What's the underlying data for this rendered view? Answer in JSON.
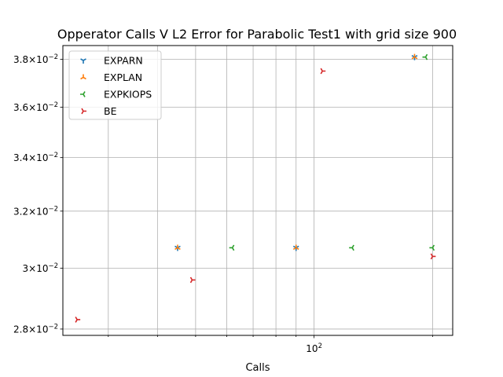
{
  "chart_data": {
    "type": "scatter",
    "title": "Opperator Calls V L2 Error for Parabolic Test1 with grid size 900",
    "xlabel": "Calls",
    "ylabel": "",
    "xscale": "log",
    "yscale": "log",
    "xlim": [
      23,
      225
    ],
    "ylim": [
      0.0278,
      0.0386
    ],
    "grid": true,
    "legend_position": "upper-left",
    "x_tick_labels": [
      {
        "value": 100,
        "base": "10",
        "exp": "2"
      }
    ],
    "y_tick_labels": [
      {
        "value": 0.028,
        "mantissa": "2.8",
        "times": "×10",
        "exp": "−2"
      },
      {
        "value": 0.03,
        "mantissa": "3",
        "times": "×10",
        "exp": "−2"
      },
      {
        "value": 0.032,
        "mantissa": "3.2",
        "times": "×10",
        "exp": "−2"
      },
      {
        "value": 0.034,
        "mantissa": "3.4",
        "times": "×10",
        "exp": "−2"
      },
      {
        "value": 0.036,
        "mantissa": "3.6",
        "times": "×10",
        "exp": "−2"
      },
      {
        "value": 0.038,
        "mantissa": "3.8",
        "times": "×10",
        "exp": "−2"
      }
    ],
    "series": [
      {
        "name": "EXPARN",
        "color": "#1f77b4",
        "marker": "tri_down",
        "points": [
          {
            "x": 45,
            "y": 0.0307
          },
          {
            "x": 90,
            "y": 0.0307
          },
          {
            "x": 180,
            "y": 0.0381
          }
        ]
      },
      {
        "name": "EXPLAN",
        "color": "#ff7f0e",
        "marker": "tri_up",
        "points": [
          {
            "x": 45,
            "y": 0.0307
          },
          {
            "x": 90,
            "y": 0.0307
          },
          {
            "x": 180,
            "y": 0.0381
          }
        ]
      },
      {
        "name": "EXPKIOPS",
        "color": "#2ca02c",
        "marker": "tri_left",
        "points": [
          {
            "x": 62,
            "y": 0.0307
          },
          {
            "x": 125,
            "y": 0.0307
          },
          {
            "x": 192,
            "y": 0.0381
          },
          {
            "x": 200,
            "y": 0.0307
          }
        ]
      },
      {
        "name": "BE",
        "color": "#d62728",
        "marker": "tri_right",
        "points": [
          {
            "x": 25,
            "y": 0.0283
          },
          {
            "x": 49,
            "y": 0.0296
          },
          {
            "x": 105,
            "y": 0.0375
          },
          {
            "x": 200,
            "y": 0.0304
          }
        ]
      }
    ]
  }
}
